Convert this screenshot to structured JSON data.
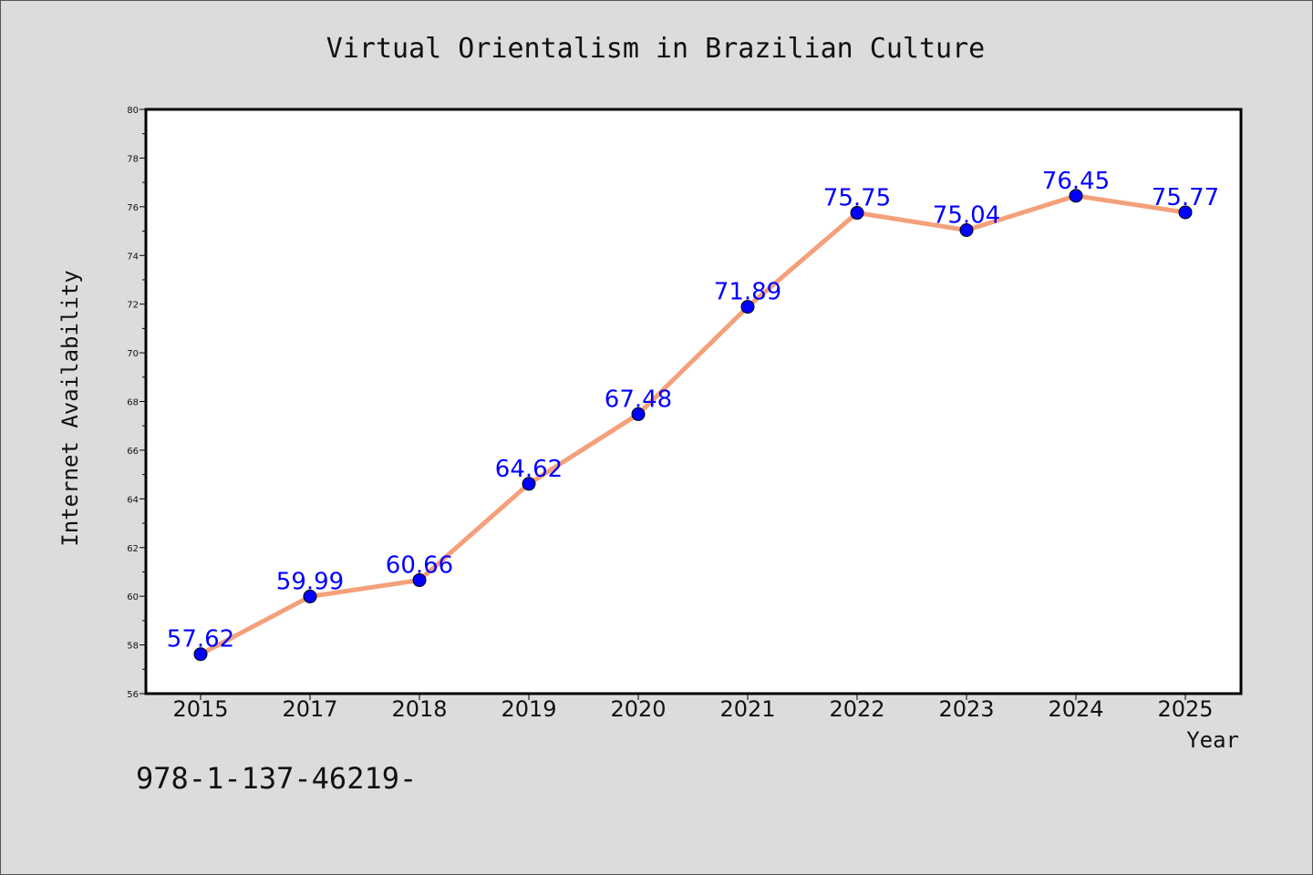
{
  "isbn_text": "978-1-137-46219-",
  "chart_data": {
    "type": "line",
    "title": "Virtual Orientalism in Brazilian Culture",
    "xlabel": "Year",
    "ylabel": "Internet Availability",
    "categories": [
      "2015",
      "2017",
      "2018",
      "2019",
      "2020",
      "2021",
      "2022",
      "2023",
      "2024",
      "2025"
    ],
    "series": [
      {
        "values": [
          57.62,
          59.99,
          60.66,
          64.62,
          67.48,
          71.89,
          75.75,
          75.04,
          76.45,
          75.77
        ]
      }
    ],
    "data_labels": [
      "57.62",
      "59.99",
      "60.66",
      "64.62",
      "67.48",
      "71.89",
      "75.75",
      "75.04",
      "76.45",
      "75.77"
    ],
    "ylim": [
      56,
      80
    ],
    "y_ticks": [
      56,
      58,
      60,
      62,
      64,
      66,
      68,
      70,
      72,
      74,
      76,
      78,
      80
    ],
    "grid": false,
    "legend": "none",
    "line_color": "#f4a07a",
    "marker_color": "#0000ff",
    "label_color": "#0000ff",
    "background": "#dcdcdc",
    "plot_background": "#ffffff"
  }
}
